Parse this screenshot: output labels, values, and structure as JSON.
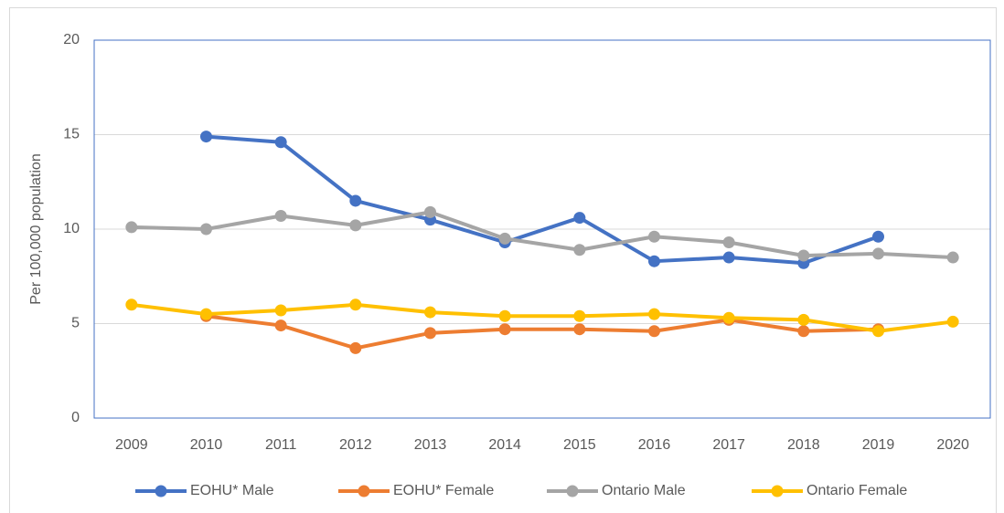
{
  "chart_data": {
    "type": "line",
    "ylabel": "Per 100,000 population",
    "categories": [
      "2009",
      "2010",
      "2011",
      "2012",
      "2013",
      "2014",
      "2015",
      "2016",
      "2017",
      "2018",
      "2019",
      "2020"
    ],
    "series": [
      {
        "name": "EOHU* Male",
        "color": "#4472c4",
        "values": [
          null,
          14.9,
          14.6,
          11.5,
          10.5,
          9.3,
          10.6,
          8.3,
          8.5,
          8.2,
          9.6,
          null
        ]
      },
      {
        "name": "EOHU* Female",
        "color": "#ed7d31",
        "values": [
          null,
          5.4,
          4.9,
          3.7,
          4.5,
          4.7,
          4.7,
          4.6,
          5.2,
          4.6,
          4.7,
          null
        ]
      },
      {
        "name": "Ontario Male",
        "color": "#a5a5a5",
        "values": [
          10.1,
          10.0,
          10.7,
          10.2,
          10.9,
          9.5,
          8.9,
          9.6,
          9.3,
          8.6,
          8.7,
          8.5
        ]
      },
      {
        "name": "Ontario Female",
        "color": "#ffc000",
        "values": [
          6.0,
          5.5,
          5.7,
          6.0,
          5.6,
          5.4,
          5.4,
          5.5,
          5.3,
          5.2,
          4.6,
          5.1
        ]
      }
    ],
    "ylim": [
      0,
      20
    ],
    "yticks": [
      0,
      5,
      10,
      15,
      20
    ],
    "grid": true,
    "legend": "bottom"
  }
}
